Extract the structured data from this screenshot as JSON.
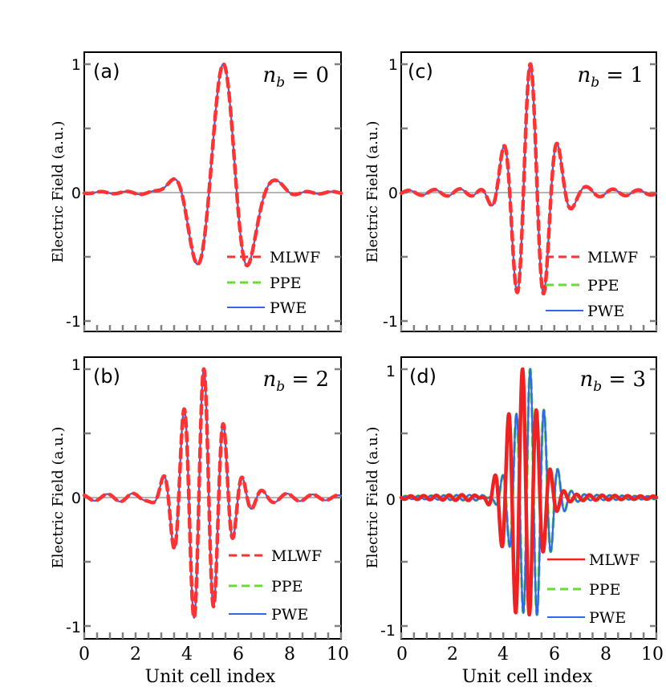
{
  "chart_data": [
    {
      "type": "line",
      "panel": "(a)",
      "annotation": "n_b = 0",
      "annotation_var": "n",
      "annotation_sub": "b",
      "annotation_eq": " = 0",
      "xlim": [
        0,
        10
      ],
      "ylim": [
        -1.1,
        1.1
      ],
      "yticks": [
        1,
        0,
        -1
      ],
      "ytick_labels": [
        "1",
        "0",
        "-1"
      ],
      "xticks": [
        0,
        2,
        4,
        6,
        8,
        10
      ],
      "xtick_labels": [
        "0",
        "2",
        "4",
        "6",
        "8",
        "10"
      ],
      "show_xtick_labels": false,
      "ylabel": "Electric Field (a.u.)",
      "xlabel": "",
      "legend": [
        "MLWF",
        "PPE",
        "PWE"
      ],
      "legend_position": "lower-right",
      "series": [
        {
          "name": "MLWF",
          "color": "#ff3333",
          "style": "dashed"
        },
        {
          "name": "PPE",
          "color": "#66dd33",
          "style": "dashed"
        },
        {
          "name": "PWE",
          "color": "#3366ee",
          "style": "solid"
        }
      ],
      "model": {
        "center": 5.4,
        "omega": 2.9,
        "sigma": 0.95,
        "tail": 0.025,
        "tail_omega": 6.283,
        "phase_shift": 0
      }
    },
    {
      "type": "line",
      "panel": "(c)",
      "annotation": "n_b = 1",
      "annotation_var": "n",
      "annotation_sub": "b",
      "annotation_eq": " = 1",
      "xlim": [
        0,
        10
      ],
      "ylim": [
        -1.1,
        1.1
      ],
      "yticks": [
        1,
        0,
        -1
      ],
      "ytick_labels": [
        "1",
        "0",
        "-1"
      ],
      "xticks": [
        0,
        2,
        4,
        6,
        8,
        10
      ],
      "xtick_labels": [
        "0",
        "2",
        "4",
        "6",
        "8",
        "10"
      ],
      "show_xtick_labels": false,
      "ylabel": "Electric Field (a.u.)",
      "xlabel": "",
      "legend": [
        "MLWF",
        "PPE",
        "PWE"
      ],
      "legend_position": "lower-right",
      "series": [
        {
          "name": "MLWF",
          "color": "#ff3333",
          "style": "dashed"
        },
        {
          "name": "PPE",
          "color": "#66dd33",
          "style": "dashed"
        },
        {
          "name": "PWE",
          "color": "#3366ee",
          "style": "solid"
        }
      ],
      "model": {
        "center": 5.05,
        "omega": 5.8,
        "sigma": 0.75,
        "tail": 0.06,
        "tail_omega": 6.283,
        "phase_shift": 0
      }
    },
    {
      "type": "line",
      "panel": "(b)",
      "annotation": "n_b = 2",
      "annotation_var": "n",
      "annotation_sub": "b",
      "annotation_eq": " = 2",
      "xlim": [
        0,
        10
      ],
      "ylim": [
        -1.1,
        1.1
      ],
      "yticks": [
        1,
        0,
        -1
      ],
      "ytick_labels": [
        "1",
        "0",
        "-1"
      ],
      "xticks": [
        0,
        2,
        4,
        6,
        8,
        10
      ],
      "xtick_labels": [
        "0",
        "2",
        "4",
        "6",
        "8",
        "10"
      ],
      "show_xtick_labels": true,
      "ylabel": "Electric Field (a.u.)",
      "xlabel": "Unit cell index",
      "legend": [
        "MLWF",
        "PPE",
        "PWE"
      ],
      "legend_position": "lower-right",
      "series": [
        {
          "name": "MLWF",
          "color": "#ff3333",
          "style": "dashed"
        },
        {
          "name": "PPE",
          "color": "#66dd33",
          "style": "dashed"
        },
        {
          "name": "PWE",
          "color": "#3366ee",
          "style": "solid"
        }
      ],
      "model": {
        "center": 4.65,
        "omega": 8.1,
        "sigma": 0.8,
        "tail": 0.07,
        "tail_omega": 6.283,
        "phase_shift": 0
      }
    },
    {
      "type": "line",
      "panel": "(d)",
      "annotation": "n_b = 3",
      "annotation_var": "n",
      "annotation_sub": "b",
      "annotation_eq": " = 3",
      "xlim": [
        0,
        10
      ],
      "ylim": [
        -1.1,
        1.1
      ],
      "yticks": [
        1,
        0,
        -1
      ],
      "ytick_labels": [
        "1",
        "0",
        "-1"
      ],
      "xticks": [
        0,
        2,
        4,
        6,
        8,
        10
      ],
      "xtick_labels": [
        "0",
        "2",
        "4",
        "6",
        "8",
        "10"
      ],
      "show_xtick_labels": true,
      "ylabel": "Electric Field (a.u.)",
      "xlabel": "Unit cell index",
      "legend": [
        "MLWF",
        "PPE",
        "PWE"
      ],
      "legend_position": "lower-right",
      "series": [
        {
          "name": "MLWF",
          "color": "#ee2222",
          "style": "solid"
        },
        {
          "name": "PPE",
          "color": "#66dd33",
          "style": "dashed"
        },
        {
          "name": "PWE",
          "color": "#3366ee",
          "style": "solid"
        }
      ],
      "model": {
        "center": 5.0,
        "omega": 11.5,
        "sigma": 0.6,
        "tail": 0.04,
        "tail_omega": 12.566,
        "phase_shift": 1
      }
    }
  ]
}
